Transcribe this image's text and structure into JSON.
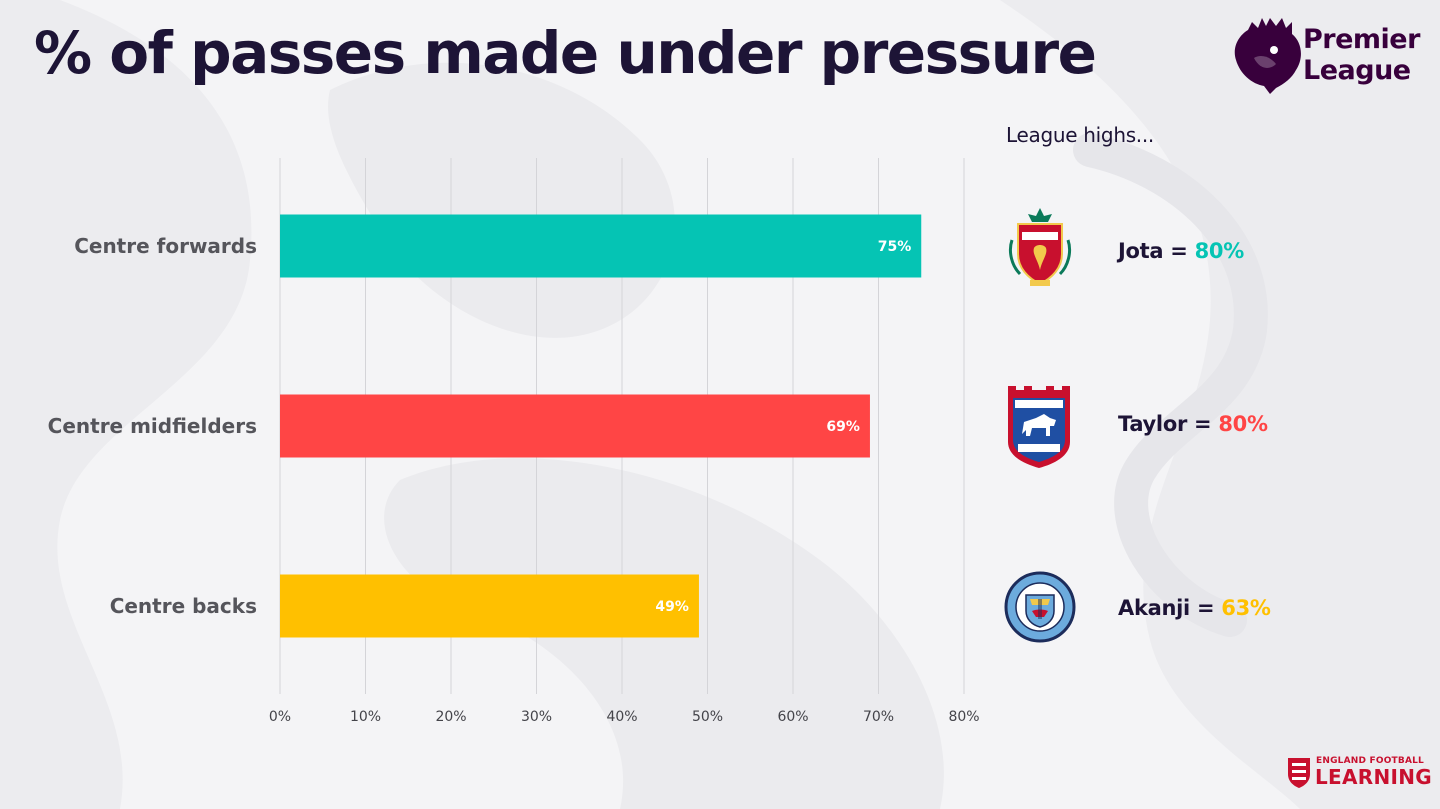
{
  "title": "% of passes made under pressure",
  "brand": {
    "premier_league_line1": "Premier",
    "premier_league_line2": "League",
    "efl_line1": "ENGLAND FOOTBALL",
    "efl_line2": "LEARNING"
  },
  "chart_data": {
    "type": "bar",
    "orientation": "horizontal",
    "categories": [
      "Centre forwards",
      "Centre midfielders",
      "Centre backs"
    ],
    "values": [
      75,
      69,
      49
    ],
    "data_labels": [
      "75%",
      "69%",
      "49%"
    ],
    "colors": [
      "#05c4b4",
      "#ff4545",
      "#ffc000"
    ],
    "xlim": [
      0,
      80
    ],
    "x_ticks": [
      0,
      10,
      20,
      30,
      40,
      50,
      60,
      70,
      80
    ],
    "x_tick_labels": [
      "0%",
      "10%",
      "20%",
      "30%",
      "40%",
      "50%",
      "60%",
      "70%",
      "80%"
    ],
    "grid": true,
    "title": "% of passes made under pressure",
    "xlabel": "",
    "ylabel": ""
  },
  "league_highs": {
    "heading": "League highs...",
    "items": [
      {
        "player": "Jota",
        "equals": " = ",
        "value": "80%",
        "color": "#05c4b4",
        "crest": "liverpool-crest-icon"
      },
      {
        "player": "Taylor",
        "equals": " = ",
        "value": "80%",
        "color": "#ff4545",
        "crest": "ipswich-town-crest-icon"
      },
      {
        "player": "Akanji",
        "equals": " = ",
        "value": "63%",
        "color": "#ffc000",
        "crest": "manchester-city-crest-icon"
      }
    ]
  },
  "colors": {
    "title": "#1d1436",
    "pl_purple": "#38003c",
    "efl_red": "#c8102e",
    "grid": "#d4d4d8"
  }
}
